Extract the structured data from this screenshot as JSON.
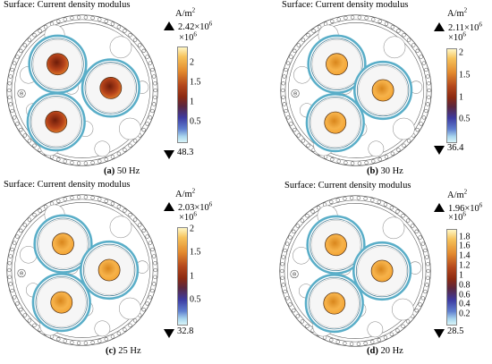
{
  "colors": {
    "bar_top": "#fff7c4",
    "bar_mid": "#8c2a12",
    "bar_low": "#3d3aa0",
    "bar_bottom": "#d8f4f8",
    "screen_blue": "#5aaec8",
    "insulation": "#f6f6f6",
    "line": "#555555"
  },
  "panels": [
    {
      "title": "Surface: Current density modulus",
      "caption_letter": "(a)",
      "caption_text": " 50 Hz",
      "unit": "A/m",
      "unit_exp": "2",
      "max_label": "2.42×10",
      "max_exp": "6",
      "mult_label": "×10",
      "mult_exp": "6",
      "min_label": "48.3",
      "ticks": [
        "2",
        "1.5",
        "1",
        "0.5"
      ],
      "tick_values": [
        2.0,
        1.5,
        1.0,
        0.5
      ],
      "scale_min": 0,
      "scale_max": 2.42,
      "rotated": true,
      "conductor_values": [
        1.7,
        1.6,
        1.75
      ]
    },
    {
      "title": "Surface: Current density modulus",
      "caption_letter": "(b)",
      "caption_text": " 30 Hz",
      "unit": "A/m",
      "unit_exp": "2",
      "max_label": "2.11×10",
      "max_exp": "6",
      "mult_label": "×10",
      "mult_exp": "6",
      "min_label": "36.4",
      "ticks": [
        "2",
        "1.5",
        "1",
        "0.5"
      ],
      "tick_values": [
        2.0,
        1.5,
        1.0,
        0.5
      ],
      "scale_min": 0,
      "scale_max": 2.11,
      "rotated": false,
      "conductor_values": [
        1.75,
        1.65,
        1.7
      ]
    },
    {
      "title": "Surface: Current density modulus",
      "caption_letter": "(c)",
      "caption_text": " 25 Hz",
      "unit": "A/m",
      "unit_exp": "2",
      "max_label": "2.03×10",
      "max_exp": "6",
      "mult_label": "×10",
      "mult_exp": "6",
      "min_label": "32.8",
      "ticks": [
        "2",
        "1.5",
        "1",
        "0.5"
      ],
      "tick_values": [
        2.0,
        1.5,
        1.0,
        0.5
      ],
      "scale_min": 0,
      "scale_max": 2.03,
      "rotated": false,
      "conductor_values": [
        1.75,
        1.72,
        1.72
      ]
    },
    {
      "title": "Surface: Current density modulus",
      "caption_letter": "(d)",
      "caption_text": " 20 Hz",
      "unit": "A/m",
      "unit_exp": "2",
      "max_label": "1.96×10",
      "max_exp": "6",
      "mult_label": "×10",
      "mult_exp": "6",
      "min_label": "28.5",
      "ticks": [
        "1.8",
        "1.6",
        "1.4",
        "1.2",
        "1",
        "0.8",
        "0.6",
        "0.4",
        "0.2"
      ],
      "tick_values": [
        1.8,
        1.6,
        1.4,
        1.2,
        1.0,
        0.8,
        0.6,
        0.4,
        0.2
      ],
      "scale_min": 0,
      "scale_max": 1.96,
      "rotated": false,
      "conductor_values": [
        1.62,
        1.58,
        1.6
      ]
    }
  ]
}
